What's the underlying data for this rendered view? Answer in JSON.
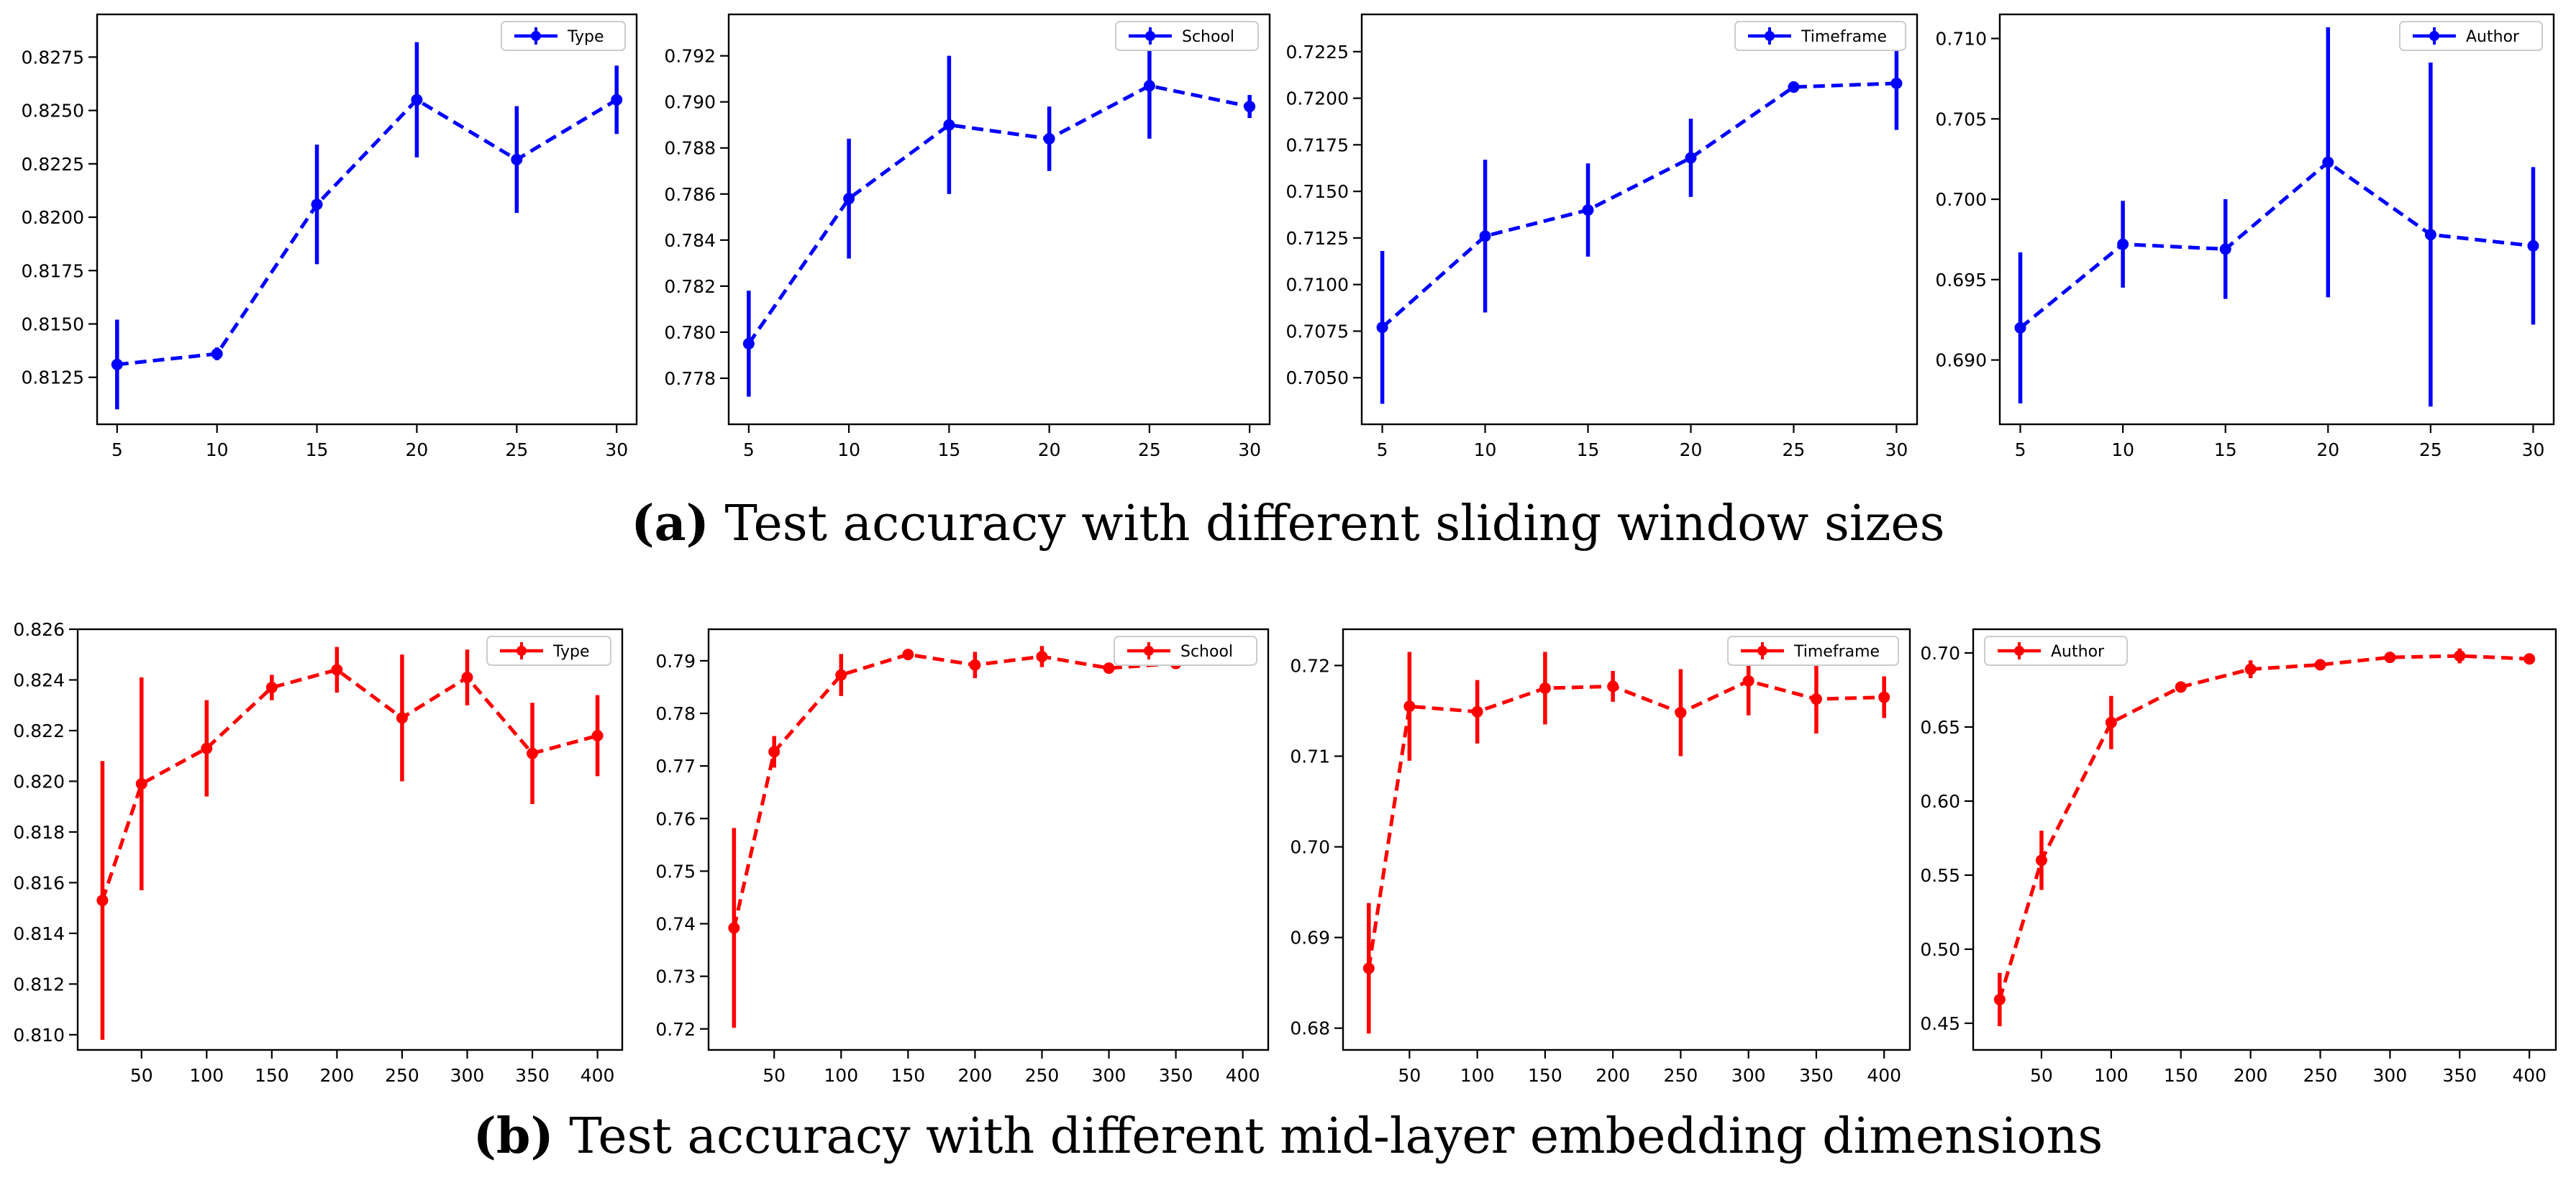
{
  "figure": {
    "caption_a": {
      "letter": "(a)",
      "text": "Test accuracy with different sliding window sizes"
    },
    "caption_b": {
      "letter": "(b)",
      "text": "Test accuracy with different mid-layer embedding dimensions"
    },
    "colors": {
      "row_a": "#0000ff",
      "row_b": "#ff0000",
      "axis": "#000000",
      "frame": "#000000"
    }
  },
  "chart_data": [
    {
      "id": "a-type",
      "type": "line",
      "row": "a",
      "legend": "Type",
      "legend_position": "top-right",
      "x": [
        5,
        10,
        15,
        20,
        25,
        30
      ],
      "y": [
        0.8131,
        0.8136,
        0.8206,
        0.8255,
        0.8227,
        0.8255
      ],
      "err": [
        0.0021,
        0.0003,
        0.0028,
        0.0027,
        0.0025,
        0.0016
      ],
      "xlim": [
        4,
        31
      ],
      "ylim": [
        0.8103,
        0.8295
      ],
      "xticks": [
        5,
        10,
        15,
        20,
        25,
        30
      ],
      "xtick_labels": [
        "5",
        "10",
        "15",
        "20",
        "25",
        "30"
      ],
      "yticks": [
        0.8125,
        0.815,
        0.8175,
        0.82,
        0.8225,
        0.825,
        0.8275
      ],
      "ytick_labels": [
        "0.8125",
        "0.8150",
        "0.8175",
        "0.8200",
        "0.8225",
        "0.8250",
        "0.8275"
      ]
    },
    {
      "id": "a-school",
      "type": "line",
      "row": "a",
      "legend": "School",
      "legend_position": "top-right",
      "x": [
        5,
        10,
        15,
        20,
        25,
        30
      ],
      "y": [
        0.7795,
        0.7858,
        0.789,
        0.7884,
        0.7907,
        0.7898
      ],
      "err": [
        0.0023,
        0.0026,
        0.003,
        0.0014,
        0.0023,
        0.0005
      ],
      "xlim": [
        4,
        31
      ],
      "ylim": [
        0.776,
        0.7938
      ],
      "xticks": [
        5,
        10,
        15,
        20,
        25,
        30
      ],
      "xtick_labels": [
        "5",
        "10",
        "15",
        "20",
        "25",
        "30"
      ],
      "yticks": [
        0.778,
        0.78,
        0.782,
        0.784,
        0.786,
        0.788,
        0.79,
        0.792
      ],
      "ytick_labels": [
        "0.778",
        "0.780",
        "0.782",
        "0.784",
        "0.786",
        "0.788",
        "0.790",
        "0.792"
      ]
    },
    {
      "id": "a-timeframe",
      "type": "line",
      "row": "a",
      "legend": "Timeframe",
      "legend_position": "top-right",
      "x": [
        5,
        10,
        15,
        20,
        25,
        30
      ],
      "y": [
        0.7077,
        0.7126,
        0.714,
        0.7168,
        0.7206,
        0.7208
      ],
      "err": [
        0.0041,
        0.0041,
        0.0025,
        0.0021,
        0.0003,
        0.0025
      ],
      "xlim": [
        4,
        31
      ],
      "ylim": [
        0.7025,
        0.7245
      ],
      "xticks": [
        5,
        10,
        15,
        20,
        25,
        30
      ],
      "xtick_labels": [
        "5",
        "10",
        "15",
        "20",
        "25",
        "30"
      ],
      "yticks": [
        0.705,
        0.7075,
        0.71,
        0.7125,
        0.715,
        0.7175,
        0.72,
        0.7225
      ],
      "ytick_labels": [
        "0.7050",
        "0.7075",
        "0.7100",
        "0.7125",
        "0.7150",
        "0.7175",
        "0.7200",
        "0.7225"
      ]
    },
    {
      "id": "a-author",
      "type": "line",
      "row": "a",
      "legend": "Author",
      "legend_position": "top-right",
      "x": [
        5,
        10,
        15,
        20,
        25,
        30
      ],
      "y": [
        0.692,
        0.6972,
        0.6969,
        0.7023,
        0.6978,
        0.6971
      ],
      "err": [
        0.0047,
        0.0027,
        0.0031,
        0.0084,
        0.0107,
        0.0049
      ],
      "xlim": [
        4,
        31
      ],
      "ylim": [
        0.686,
        0.7115
      ],
      "xticks": [
        5,
        10,
        15,
        20,
        25,
        30
      ],
      "xtick_labels": [
        "5",
        "10",
        "15",
        "20",
        "25",
        "30"
      ],
      "yticks": [
        0.69,
        0.695,
        0.7,
        0.705,
        0.71
      ],
      "ytick_labels": [
        "0.690",
        "0.695",
        "0.700",
        "0.705",
        "0.710"
      ]
    },
    {
      "id": "b-type",
      "type": "line",
      "row": "b",
      "legend": "Type",
      "legend_position": "top-right",
      "x": [
        20,
        50,
        100,
        150,
        200,
        250,
        300,
        350,
        400
      ],
      "y": [
        0.8153,
        0.8199,
        0.8213,
        0.8237,
        0.8244,
        0.8225,
        0.8241,
        0.8211,
        0.8218
      ],
      "err": [
        0.0055,
        0.0042,
        0.0019,
        0.0005,
        0.0009,
        0.0025,
        0.0011,
        0.002,
        0.0016
      ],
      "xlim": [
        1,
        419
      ],
      "ylim": [
        0.8094,
        0.826
      ],
      "xticks": [
        50,
        100,
        150,
        200,
        250,
        300,
        350,
        400
      ],
      "xtick_labels": [
        "50",
        "100",
        "150",
        "200",
        "250",
        "300",
        "350",
        "400"
      ],
      "yticks": [
        0.81,
        0.812,
        0.814,
        0.816,
        0.818,
        0.82,
        0.822,
        0.824,
        0.826
      ],
      "ytick_labels": [
        "0.810",
        "0.812",
        "0.814",
        "0.816",
        "0.818",
        "0.820",
        "0.822",
        "0.824",
        "0.826"
      ]
    },
    {
      "id": "b-school",
      "type": "line",
      "row": "b",
      "legend": "School",
      "legend_position": "top-right",
      "x": [
        20,
        50,
        100,
        150,
        200,
        250,
        300,
        350,
        400
      ],
      "y": [
        0.7392,
        0.7727,
        0.7873,
        0.7912,
        0.7892,
        0.7908,
        0.7886,
        0.7895,
        0.7901
      ],
      "err": [
        0.019,
        0.003,
        0.004,
        0.0005,
        0.0025,
        0.002,
        0.0005,
        0.0005,
        0.0005
      ],
      "xlim": [
        1,
        419
      ],
      "ylim": [
        0.716,
        0.796
      ],
      "xticks": [
        50,
        100,
        150,
        200,
        250,
        300,
        350,
        400
      ],
      "xtick_labels": [
        "50",
        "100",
        "150",
        "200",
        "250",
        "300",
        "350",
        "400"
      ],
      "yticks": [
        0.72,
        0.73,
        0.74,
        0.75,
        0.76,
        0.77,
        0.78,
        0.79
      ],
      "ytick_labels": [
        "0.72",
        "0.73",
        "0.74",
        "0.75",
        "0.76",
        "0.77",
        "0.78",
        "0.79"
      ]
    },
    {
      "id": "b-timeframe",
      "type": "line",
      "row": "b",
      "legend": "Timeframe",
      "legend_position": "top-right",
      "x": [
        20,
        50,
        100,
        150,
        200,
        250,
        300,
        350,
        400
      ],
      "y": [
        0.6866,
        0.7155,
        0.7149,
        0.7175,
        0.7177,
        0.7148,
        0.7183,
        0.7163,
        0.7165
      ],
      "err": [
        0.0072,
        0.006,
        0.0035,
        0.004,
        0.0017,
        0.0048,
        0.0038,
        0.0038,
        0.0023
      ],
      "xlim": [
        1,
        419
      ],
      "ylim": [
        0.6776,
        0.724
      ],
      "xticks": [
        50,
        100,
        150,
        200,
        250,
        300,
        350,
        400
      ],
      "xtick_labels": [
        "50",
        "100",
        "150",
        "200",
        "250",
        "300",
        "350",
        "400"
      ],
      "yticks": [
        0.68,
        0.69,
        0.7,
        0.71,
        0.72
      ],
      "ytick_labels": [
        "0.68",
        "0.69",
        "0.70",
        "0.71",
        "0.72"
      ]
    },
    {
      "id": "b-author",
      "type": "line",
      "row": "b",
      "legend": "Author",
      "legend_position": "top-left",
      "x": [
        20,
        50,
        100,
        150,
        200,
        250,
        300,
        350,
        400
      ],
      "y": [
        0.466,
        0.56,
        0.653,
        0.677,
        0.689,
        0.692,
        0.697,
        0.698,
        0.696
      ],
      "err": [
        0.018,
        0.02,
        0.018,
        0.003,
        0.006,
        0.003,
        0.002,
        0.005,
        0.003
      ],
      "xlim": [
        1,
        419
      ],
      "ylim": [
        0.432,
        0.716
      ],
      "xticks": [
        50,
        100,
        150,
        200,
        250,
        300,
        350,
        400
      ],
      "xtick_labels": [
        "50",
        "100",
        "150",
        "200",
        "250",
        "300",
        "350",
        "400"
      ],
      "yticks": [
        0.45,
        0.5,
        0.55,
        0.6,
        0.65,
        0.7
      ],
      "ytick_labels": [
        "0.45",
        "0.50",
        "0.55",
        "0.60",
        "0.65",
        "0.70"
      ]
    }
  ]
}
